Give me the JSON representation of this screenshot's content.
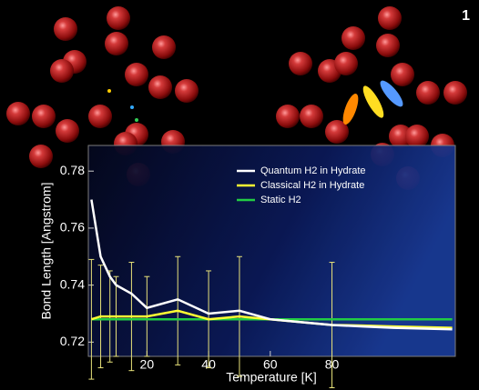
{
  "chart_data": {
    "type": "line",
    "panel_label": "1",
    "x_label": "Temperature [K]",
    "y_label": "Bond Length [Angstrom]",
    "x": [
      2,
      5,
      8,
      10,
      15,
      20,
      30,
      40,
      50,
      60,
      70,
      80,
      90,
      100,
      119
    ],
    "series": [
      {
        "name": "Quantum H2 in Hydrate",
        "color": "#ffffff",
        "values": [
          0.77,
          0.75,
          0.743,
          0.74,
          0.737,
          0.732,
          0.735,
          0.73,
          0.731,
          0.728,
          0.727,
          0.726,
          0.7255,
          0.725,
          0.7245
        ]
      },
      {
        "name": "Classical H2 in Hydrate",
        "color": "#ffff33",
        "values": [
          0.728,
          0.729,
          0.729,
          0.729,
          0.729,
          0.729,
          0.731,
          0.728,
          0.729,
          0.728,
          0.727,
          0.726,
          0.7258,
          0.7255,
          0.725
        ],
        "errors": [
          0.021,
          0.018,
          0.016,
          0.014,
          0.019,
          0.014,
          0.019,
          0.017,
          0.021,
          null,
          null,
          0.022,
          null,
          null,
          null
        ]
      },
      {
        "name": "Static H2",
        "color": "#22cc44",
        "values": [
          0.728,
          0.728,
          0.728,
          0.728,
          0.728,
          0.728,
          0.728,
          0.728,
          0.728,
          0.728,
          0.728,
          0.728,
          0.728,
          0.728,
          0.728
        ]
      }
    ],
    "xlim": [
      1,
      120
    ],
    "ylim": [
      0.715,
      0.789
    ],
    "xticks": [
      20,
      40,
      60,
      80
    ],
    "yticks": [
      0.72,
      0.74,
      0.76,
      0.78
    ],
    "legend": "upper right"
  }
}
